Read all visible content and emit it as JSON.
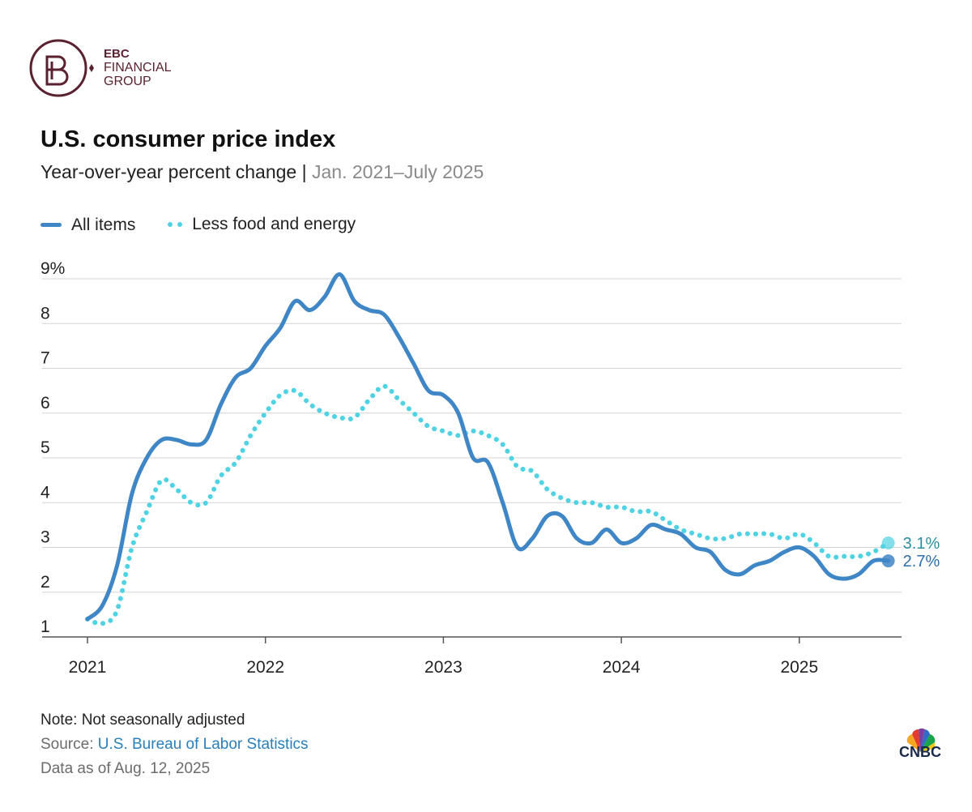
{
  "brand": {
    "line1": "EBC",
    "line2": "FINANCIAL",
    "line3": "GROUP",
    "logo_icon": "ebc-monogram-icon",
    "color": "#5a2230"
  },
  "title": "U.S. consumer price index",
  "subtitle": "Year-over-year percent change",
  "subtitle_sep": " | ",
  "date_range": "Jan. 2021–July 2025",
  "legend": [
    {
      "label": "All items",
      "style": "solid",
      "color": "#3f86c6"
    },
    {
      "label": "Less food and energy",
      "style": "dotted",
      "color": "#4fd3e3"
    }
  ],
  "chart_data": {
    "type": "line",
    "x_start": "2021-01",
    "x_end": "2025-07",
    "ylim": [
      1,
      9
    ],
    "y_ticks": [
      "1",
      "2",
      "3",
      "4",
      "5",
      "6",
      "7",
      "8",
      "9%"
    ],
    "x_ticks": [
      {
        "label": "2021",
        "month_index": 0
      },
      {
        "label": "2022",
        "month_index": 12
      },
      {
        "label": "2023",
        "month_index": 24
      },
      {
        "label": "2024",
        "month_index": 36
      },
      {
        "label": "2025",
        "month_index": 48
      }
    ],
    "series": [
      {
        "name": "All items",
        "style": "solid",
        "color": "#3f86c6",
        "end_label": "2.7%",
        "values": [
          1.4,
          1.7,
          2.6,
          4.2,
          5.0,
          5.4,
          5.4,
          5.3,
          5.4,
          6.2,
          6.8,
          7.0,
          7.5,
          7.9,
          8.5,
          8.3,
          8.6,
          9.1,
          8.5,
          8.3,
          8.2,
          7.7,
          7.1,
          6.5,
          6.4,
          6.0,
          5.0,
          4.9,
          4.0,
          3.0,
          3.2,
          3.7,
          3.7,
          3.2,
          3.1,
          3.4,
          3.1,
          3.2,
          3.5,
          3.4,
          3.3,
          3.0,
          2.9,
          2.5,
          2.4,
          2.6,
          2.7,
          2.9,
          3.0,
          2.8,
          2.4,
          2.3,
          2.4,
          2.7,
          2.7
        ]
      },
      {
        "name": "Less food and energy",
        "style": "dotted",
        "color": "#4fd3e3",
        "end_label": "3.1%",
        "values": [
          1.4,
          1.3,
          1.6,
          3.0,
          3.8,
          4.5,
          4.3,
          4.0,
          4.0,
          4.6,
          4.9,
          5.5,
          6.0,
          6.4,
          6.5,
          6.2,
          6.0,
          5.9,
          5.9,
          6.3,
          6.6,
          6.3,
          6.0,
          5.7,
          5.6,
          5.5,
          5.6,
          5.5,
          5.3,
          4.8,
          4.7,
          4.3,
          4.1,
          4.0,
          4.0,
          3.9,
          3.9,
          3.8,
          3.8,
          3.6,
          3.4,
          3.3,
          3.2,
          3.2,
          3.3,
          3.3,
          3.3,
          3.2,
          3.3,
          3.1,
          2.8,
          2.8,
          2.8,
          2.9,
          3.1
        ]
      }
    ]
  },
  "footer": {
    "note": "Note: Not seasonally adjusted",
    "source_prefix": "Source: ",
    "source_link": "U.S. Bureau of Labor Statistics",
    "data_as_of": "Data as of Aug. 12, 2025"
  },
  "cnbc": {
    "text": "CNBC",
    "icon": "peacock-icon"
  }
}
